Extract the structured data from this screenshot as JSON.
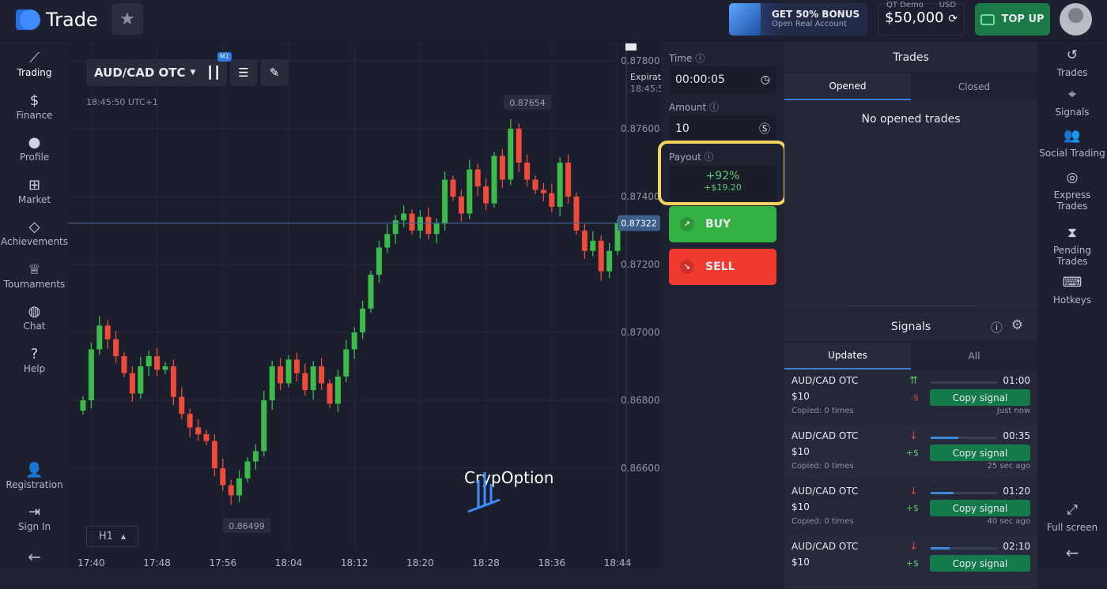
{
  "header": {
    "logo_text": "Trade",
    "bonus_title": "GET 50% BONUS",
    "bonus_sub": "Open Real Account",
    "account_type": "QT Demo",
    "currency": "USD",
    "balance": "$50,000",
    "topup_label": "TOP UP"
  },
  "left_nav": [
    {
      "label": "Trading",
      "icon": "chart-line-icon"
    },
    {
      "label": "Finance",
      "icon": "dollar-icon"
    },
    {
      "label": "Profile",
      "icon": "user-icon"
    },
    {
      "label": "Market",
      "icon": "cart-icon"
    },
    {
      "label": "Achievements",
      "icon": "diamond-icon"
    },
    {
      "label": "Tournaments",
      "icon": "trophy-icon"
    },
    {
      "label": "Chat",
      "icon": "chat-icon"
    },
    {
      "label": "Help",
      "icon": "help-icon"
    }
  ],
  "left_nav_bottom": [
    {
      "label": "Registration",
      "icon": "user-plus-icon"
    },
    {
      "label": "Sign In",
      "icon": "sign-in-icon"
    }
  ],
  "chart": {
    "pair": "AUD/CAD OTC",
    "timeframe_badge": "M1",
    "server_time": "18:45:50 UTC+1",
    "interval": "H1",
    "expiration_label": "Expirat",
    "expiration_time": "18:45:5",
    "watermark": "CrypOption"
  },
  "chart_data": {
    "type": "candlestick",
    "title": "",
    "price_ticks": [
      "0.87800",
      "0.87600",
      "0.87400",
      "0.87200",
      "0.87000",
      "0.86800",
      "0.86600"
    ],
    "ylim": [
      0.865,
      0.878
    ],
    "time_ticks": [
      "17:40",
      "17:48",
      "17:56",
      "18:04",
      "18:12",
      "18:20",
      "18:28",
      "18:36",
      "18:44"
    ],
    "start_time": "17:39",
    "interval_minutes": 1,
    "close": [
      0.868,
      0.8695,
      0.8702,
      0.8698,
      0.8693,
      0.8688,
      0.8682,
      0.869,
      0.8693,
      0.8689,
      0.869,
      0.8681,
      0.8676,
      0.8672,
      0.867,
      0.8668,
      0.866,
      0.8655,
      0.8652,
      0.8657,
      0.8662,
      0.8665,
      0.868,
      0.869,
      0.8685,
      0.8692,
      0.8688,
      0.8683,
      0.869,
      0.8685,
      0.8679,
      0.8687,
      0.8695,
      0.87,
      0.8707,
      0.8717,
      0.8725,
      0.8729,
      0.8733,
      0.8735,
      0.873,
      0.8734,
      0.8729,
      0.8732,
      0.8745,
      0.874,
      0.8735,
      0.8748,
      0.8743,
      0.8738,
      0.8752,
      0.8745,
      0.876,
      0.875,
      0.8745,
      0.8742,
      0.8741,
      0.8737,
      0.875,
      0.874,
      0.873,
      0.8724,
      0.8727,
      0.8718,
      0.8724,
      0.87322
    ],
    "high_label": "0.87654",
    "low_label": "0.86499",
    "current_price": "0.87322",
    "colors": {
      "up": "#3dbb4a",
      "down": "#f04b3a"
    }
  },
  "trade": {
    "time_label": "Time",
    "time_value": "00:00:05",
    "amount_label": "Amount",
    "amount_value": "10",
    "payout_label": "Payout",
    "payout_pct": "+92%",
    "payout_amount": "+$19.20",
    "buy_label": "BUY",
    "sell_label": "SELL"
  },
  "trades": {
    "title": "Trades",
    "tabs": [
      "Opened",
      "Closed"
    ],
    "empty": "No opened trades"
  },
  "signals": {
    "title": "Signals",
    "tabs": [
      "Updates",
      "All"
    ],
    "items": [
      {
        "pair": "AUD/CAD OTC",
        "amount": "$10",
        "copied": "Copied: 0 times",
        "dir": "⇈",
        "dir_color": "#5ec86b",
        "pm": "-$",
        "pm_color": "#d84a3a",
        "progress": 0,
        "time": "01:00",
        "copy": "Copy signal",
        "ago": "Just now"
      },
      {
        "pair": "AUD/CAD OTC",
        "amount": "$10",
        "copied": "Copied: 0 times",
        "dir": "↓",
        "dir_color": "#e0483b",
        "pm": "+$",
        "pm_color": "#5ec86b",
        "progress": 42,
        "time": "00:35",
        "copy": "Copy signal",
        "ago": "25 sec ago"
      },
      {
        "pair": "AUD/CAD OTC",
        "amount": "$10",
        "copied": "Copied: 0 times",
        "dir": "↓",
        "dir_color": "#e0483b",
        "pm": "+$",
        "pm_color": "#5ec86b",
        "progress": 34,
        "time": "01:20",
        "copy": "Copy signal",
        "ago": "40 sec ago"
      },
      {
        "pair": "AUD/CAD OTC",
        "amount": "$10",
        "copied": "",
        "dir": "↓",
        "dir_color": "#e0483b",
        "pm": "+$",
        "pm_color": "#5ec86b",
        "progress": 28,
        "time": "02:10",
        "copy": "Copy signal",
        "ago": ""
      }
    ]
  },
  "right_nav": [
    {
      "label": "Trades",
      "icon": "history-icon"
    },
    {
      "label": "Signals",
      "icon": "antenna-icon"
    },
    {
      "label": "Social Trading",
      "icon": "users-icon"
    },
    {
      "label": "Express Trades",
      "icon": "target-icon"
    },
    {
      "label": "Pending Trades",
      "icon": "hourglass-icon"
    },
    {
      "label": "Hotkeys",
      "icon": "keyboard-icon"
    }
  ],
  "right_nav_bottom": {
    "label": "Full screen",
    "icon": "fullscreen-icon"
  }
}
